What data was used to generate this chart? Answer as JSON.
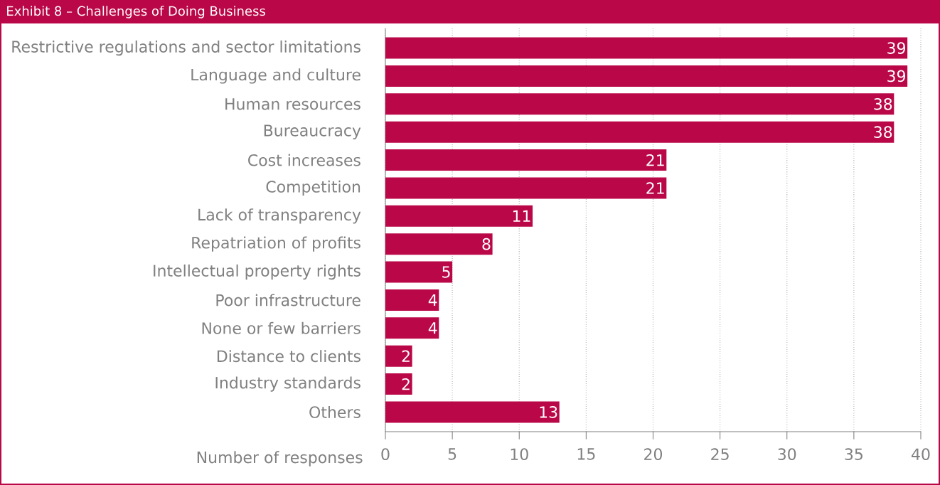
{
  "chart_data": {
    "type": "bar",
    "orientation": "horizontal",
    "title": "Exhibit 8 – Challenges of Doing Business",
    "categories": [
      "Restrictive regulations and sector limitations",
      "Language and culture",
      "Human resources",
      "Bureaucracy",
      "Cost increases",
      "Competition",
      "Lack of transparency",
      "Repatriation of profits",
      "Intellectual property rights",
      "Poor infrastructure",
      "None or few barriers",
      "Distance to clients",
      "Industry standards",
      "Others"
    ],
    "values": [
      39,
      39,
      38,
      38,
      21,
      21,
      11,
      8,
      5,
      4,
      4,
      2,
      2,
      13
    ],
    "color": "#ba0747",
    "xlabel": "Number of responses",
    "xlim": [
      0,
      40
    ],
    "xticks": [
      0,
      5,
      10,
      15,
      20,
      25,
      30,
      35,
      40
    ],
    "grid": "x",
    "data_labels": true
  }
}
